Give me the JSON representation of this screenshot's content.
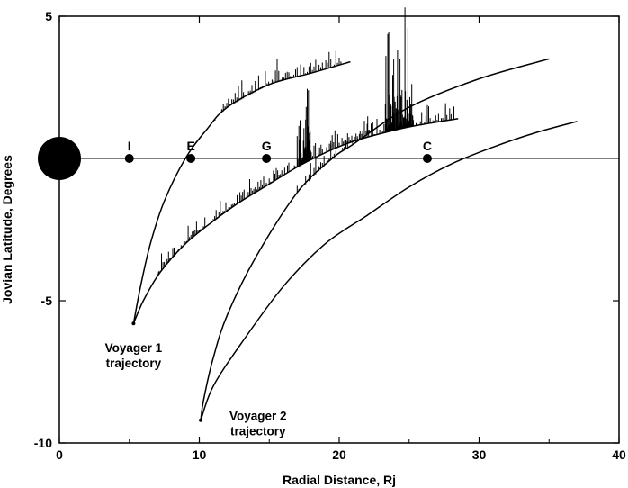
{
  "chart_data": {
    "type": "line",
    "xlabel": "Radial Distance, Rj",
    "ylabel": "Jovian Latitude, Degrees",
    "xlim": [
      0,
      40
    ],
    "ylim": [
      -10,
      5
    ],
    "xticks": [
      0,
      10,
      20,
      30,
      40
    ],
    "yticks": [
      5,
      -5,
      -10
    ],
    "grid": false,
    "reference_line_y": 0,
    "planet": {
      "x": 0,
      "y": 0,
      "color": "#000000"
    },
    "moons": [
      {
        "label": "I",
        "x": 5.0,
        "y": 0
      },
      {
        "label": "E",
        "x": 9.4,
        "y": 0
      },
      {
        "label": "G",
        "x": 14.8,
        "y": 0
      },
      {
        "label": "C",
        "x": 26.3,
        "y": 0
      }
    ],
    "series": [
      {
        "inbound": [
          [
            20.8,
            3.4
          ],
          [
            18.0,
            3.0
          ],
          [
            15.0,
            2.6
          ],
          [
            12.0,
            1.8
          ],
          [
            10.5,
            1.0
          ],
          [
            9.0,
            0
          ],
          [
            7.5,
            -1.5
          ],
          [
            6.5,
            -3.0
          ],
          [
            5.8,
            -4.5
          ],
          [
            5.3,
            -5.8
          ]
        ],
        "outbound": [
          [
            5.3,
            -5.8
          ],
          [
            6.0,
            -5.0
          ],
          [
            7.2,
            -4.0
          ],
          [
            9.0,
            -3.0
          ],
          [
            11.0,
            -2.2
          ],
          [
            13.0,
            -1.5
          ],
          [
            15.0,
            -0.9
          ],
          [
            17.0,
            -0.3
          ],
          [
            19.0,
            0.2
          ],
          [
            21.0,
            0.6
          ],
          [
            24.0,
            1.0
          ],
          [
            26.0,
            1.2
          ],
          [
            28.5,
            1.4
          ]
        ],
        "minimum": {
          "x": 5.3,
          "y": -5.8
        },
        "annotation": [
          "Voyager 1",
          "trajectory"
        ]
      },
      {
        "inbound": [
          [
            35.0,
            3.5
          ],
          [
            30.0,
            2.8
          ],
          [
            25.0,
            1.8
          ],
          [
            21.0,
            0.5
          ],
          [
            19.5,
            0
          ],
          [
            17.0,
            -1.2
          ],
          [
            14.0,
            -3.5
          ],
          [
            12.0,
            -5.5
          ],
          [
            11.0,
            -7.0
          ],
          [
            10.3,
            -8.5
          ],
          [
            10.1,
            -9.2
          ]
        ],
        "outbound": [
          [
            10.1,
            -9.2
          ],
          [
            11.0,
            -8.0
          ],
          [
            13.0,
            -6.5
          ],
          [
            16.0,
            -4.5
          ],
          [
            19.0,
            -3.0
          ],
          [
            22.0,
            -2.0
          ],
          [
            25.0,
            -1.0
          ],
          [
            28.0,
            -0.2
          ],
          [
            31.0,
            0.4
          ],
          [
            34.0,
            0.9
          ],
          [
            37.0,
            1.3
          ]
        ],
        "minimum": {
          "x": 10.1,
          "y": -9.2
        },
        "annotation": [
          "Voyager 2",
          "trajectory"
        ]
      }
    ],
    "colors": {
      "line": "#000000",
      "background": "#ffffff"
    }
  }
}
